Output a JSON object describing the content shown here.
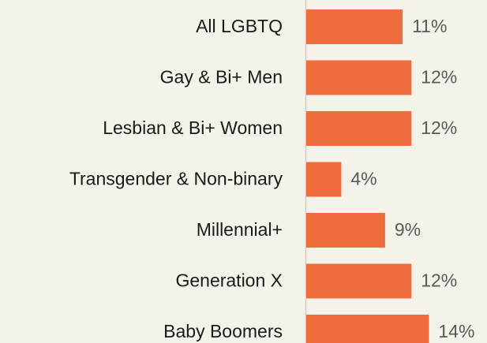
{
  "chart_data": {
    "type": "bar",
    "orientation": "horizontal",
    "categories": [
      "All LGBTQ",
      "Gay & Bi+ Men",
      "Lesbian & Bi+ Women",
      "Transgender & Non-binary",
      "Millennial+",
      "Generation X",
      "Baby Boomers"
    ],
    "values": [
      11,
      12,
      12,
      4,
      9,
      12,
      14
    ],
    "value_labels": [
      "11%",
      "12%",
      "12%",
      "4%",
      "9%",
      "12%",
      "14%"
    ],
    "color": "#ef6d3d",
    "xlim": [
      0,
      20
    ]
  }
}
